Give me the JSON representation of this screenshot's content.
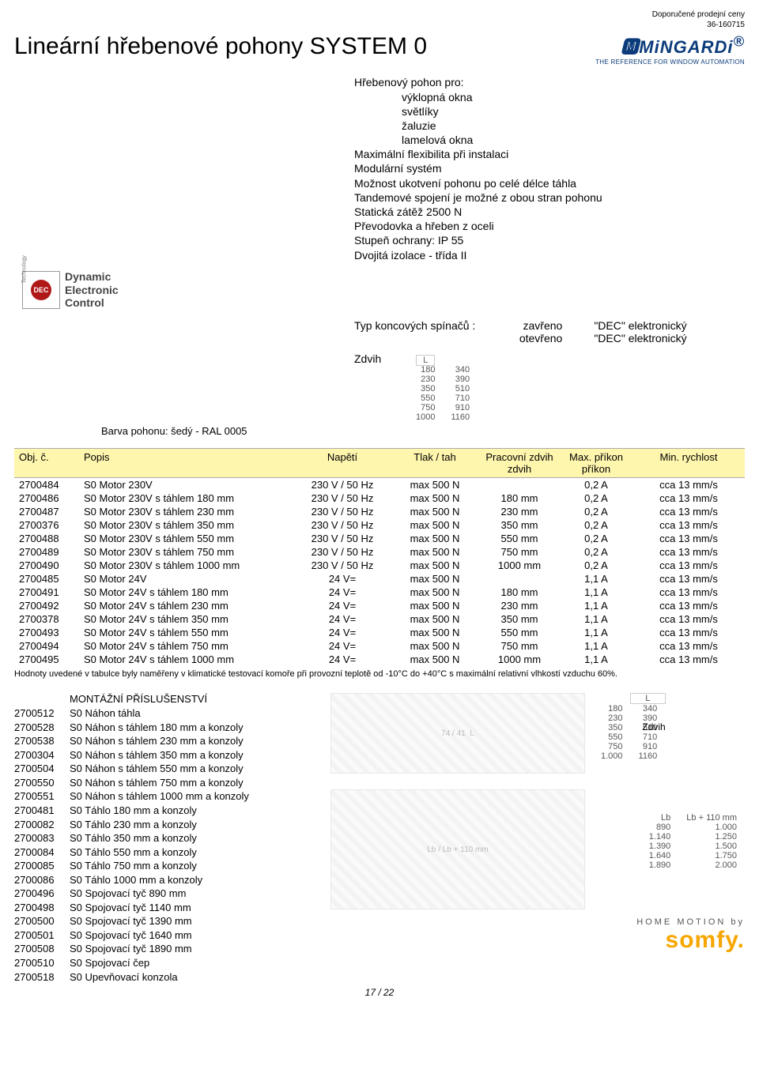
{
  "header": {
    "top_note": "Doporučené prodejní ceny",
    "doc_code": "36-160715",
    "title": "Lineární hřebenové pohony SYSTEM 0",
    "brand_name": "MiNGARDi",
    "brand_sub": "THE REFERENCE FOR WINDOW AUTOMATION",
    "brand_reg": "®"
  },
  "intro": {
    "line1": "Hřebenový pohon pro:",
    "bullets": [
      "výklopná okna",
      "světlíky",
      "žaluzie",
      "lamelová okna"
    ],
    "lines": [
      "Maximální flexibilita při instalaci",
      "Modulární systém",
      "Možnost ukotvení pohonu po celé délce táhla",
      "Tandemové spojení je možné z obou stran pohonu",
      "Statická zátěž 2500 N",
      "Převodovka a hřeben z oceli",
      "Stupeň ochrany: IP 55",
      "Dvojitá izolace - třída II"
    ]
  },
  "dec": {
    "vert": "Technology",
    "badge": "DEC",
    "label1": "Dynamic",
    "label2": "Electronic",
    "label3": "Control"
  },
  "switches": {
    "label": "Typ koncových spínačů :",
    "state1": "zavřeno",
    "value1": "\"DEC\" elektronický",
    "state2": "otevřeno",
    "value2": "\"DEC\" elektronický"
  },
  "zdvih": {
    "label": "Zdvih",
    "l_head": "L",
    "rows": [
      [
        "180",
        "340"
      ],
      [
        "230",
        "390"
      ],
      [
        "350",
        "510"
      ],
      [
        "550",
        "710"
      ],
      [
        "750",
        "910"
      ],
      [
        "1000",
        "1160"
      ]
    ]
  },
  "motor_color": "Barva pohonu: šedý - RAL 0005",
  "table": {
    "columns": [
      "Obj. č.",
      "Popis",
      "Napětí",
      "Tlak / tah",
      "Pracovní zdvih",
      "Max. příkon",
      "Min. rychlost"
    ],
    "col_sub": [
      "",
      "",
      "",
      "",
      "zdvih",
      "příkon",
      ""
    ],
    "rows": [
      [
        "2700484",
        "S0 Motor 230V",
        "230 V / 50 Hz",
        "max 500 N",
        "",
        "0,2 A",
        "cca 13 mm/s"
      ],
      [
        "2700486",
        "S0 Motor 230V s táhlem 180 mm",
        "230 V / 50 Hz",
        "max 500 N",
        "180 mm",
        "0,2 A",
        "cca 13 mm/s"
      ],
      [
        "2700487",
        "S0 Motor 230V s táhlem 230 mm",
        "230 V / 50 Hz",
        "max 500 N",
        "230 mm",
        "0,2 A",
        "cca 13 mm/s"
      ],
      [
        "2700376",
        "S0 Motor 230V s táhlem 350 mm",
        "230 V / 50 Hz",
        "max 500 N",
        "350 mm",
        "0,2 A",
        "cca 13 mm/s"
      ],
      [
        "2700488",
        "S0 Motor 230V s táhlem 550 mm",
        "230 V / 50 Hz",
        "max 500 N",
        "550 mm",
        "0,2 A",
        "cca 13 mm/s"
      ],
      [
        "2700489",
        "S0 Motor 230V s táhlem 750 mm",
        "230 V / 50 Hz",
        "max 500 N",
        "750 mm",
        "0,2 A",
        "cca 13 mm/s"
      ],
      [
        "2700490",
        "S0 Motor 230V s táhlem 1000 mm",
        "230 V / 50 Hz",
        "max 500 N",
        "1000 mm",
        "0,2 A",
        "cca 13 mm/s"
      ],
      [
        "2700485",
        "S0 Motor 24V",
        "24 V=",
        "max 500 N",
        "",
        "1,1 A",
        "cca 13 mm/s"
      ],
      [
        "2700491",
        "S0 Motor 24V s táhlem 180 mm",
        "24 V=",
        "max 500 N",
        "180 mm",
        "1,1 A",
        "cca 13 mm/s"
      ],
      [
        "2700492",
        "S0 Motor 24V s táhlem 230 mm",
        "24 V=",
        "max 500 N",
        "230 mm",
        "1,1 A",
        "cca 13 mm/s"
      ],
      [
        "2700378",
        "S0 Motor 24V s táhlem 350 mm",
        "24 V=",
        "max 500 N",
        "350 mm",
        "1,1 A",
        "cca 13 mm/s"
      ],
      [
        "2700493",
        "S0 Motor 24V s táhlem 550 mm",
        "24 V=",
        "max 500 N",
        "550 mm",
        "1,1 A",
        "cca 13 mm/s"
      ],
      [
        "2700494",
        "S0 Motor 24V s táhlem 750 mm",
        "24 V=",
        "max 500 N",
        "750 mm",
        "1,1 A",
        "cca 13 mm/s"
      ],
      [
        "2700495",
        "S0 Motor 24V s táhlem 1000 mm",
        "24 V=",
        "max 500 N",
        "1000 mm",
        "1,1 A",
        "cca 13 mm/s"
      ]
    ]
  },
  "footnote": "Hodnoty uvedené v tabulce byly naměřeny v klimatické testovací komoře při provozní teplotě od -10°C do +40°C s maximální relativní vlhkostí vzduchu 60%.",
  "accessories": {
    "title": "MONTÁŽNÍ PŘÍSLUŠENSTVÍ",
    "rows": [
      [
        "2700512",
        "S0 Náhon táhla"
      ],
      [
        "2700528",
        "S0 Náhon s táhlem 180 mm a konzoly"
      ],
      [
        "2700538",
        "S0 Náhon s táhlem 230 mm a konzoly"
      ],
      [
        "2700304",
        "S0 Náhon s táhlem 350 mm a konzoly"
      ],
      [
        "2700504",
        "S0 Náhon s táhlem 550 mm a konzoly"
      ],
      [
        "2700550",
        "S0 Náhon s táhlem 750 mm a konzoly"
      ],
      [
        "2700551",
        "S0 Náhon s táhlem 1000 mm a konzoly"
      ],
      [
        "2700481",
        "S0 Táhlo 180 mm a konzoly"
      ],
      [
        "2700082",
        "S0 Táhlo 230 mm a konzoly"
      ],
      [
        "2700083",
        "S0 Táhlo 350 mm a konzoly"
      ],
      [
        "2700084",
        "S0 Táhlo 550 mm a konzoly"
      ],
      [
        "2700085",
        "S0 Táhlo 750 mm a konzoly"
      ],
      [
        "2700086",
        "S0 Táhlo 1000 mm a konzoly"
      ],
      [
        "2700496",
        "S0 Spojovací tyč 890 mm"
      ],
      [
        "2700498",
        "S0 Spojovací tyč 1140 mm"
      ],
      [
        "2700500",
        "S0 Spojovací tyč 1390 mm"
      ],
      [
        "2700501",
        "S0 Spojovací tyč 1640 mm"
      ],
      [
        "2700508",
        "S0 Spojovací tyč 1890 mm"
      ],
      [
        "2700510",
        "S0 Spojovací čep"
      ],
      [
        "2700518",
        "S0 Upevňovací konzola"
      ]
    ]
  },
  "dim_small": {
    "head": "L",
    "rows": [
      [
        "180",
        "340"
      ],
      [
        "230",
        "390"
      ],
      [
        "350",
        "510"
      ],
      [
        "550",
        "710"
      ],
      [
        "750",
        "910"
      ],
      [
        "1.000",
        "1160"
      ]
    ],
    "zdvih": "Zdvih"
  },
  "lb_table": {
    "head1": "Lb",
    "head2": "Lb + 110 mm",
    "rows": [
      [
        "890",
        "1.000"
      ],
      [
        "1.140",
        "1.250"
      ],
      [
        "1.390",
        "1.500"
      ],
      [
        "1.640",
        "1.750"
      ],
      [
        "1.890",
        "2.000"
      ]
    ]
  },
  "diagram_labels": {
    "lb": "Lb",
    "lb110": "Lb + 110 mm",
    "dim74": "74",
    "dim41": "41",
    "lchar": "L"
  },
  "footer": {
    "home_motion": "HOME MOTION by",
    "somfy": "somfy.",
    "page": "17 / 22"
  }
}
